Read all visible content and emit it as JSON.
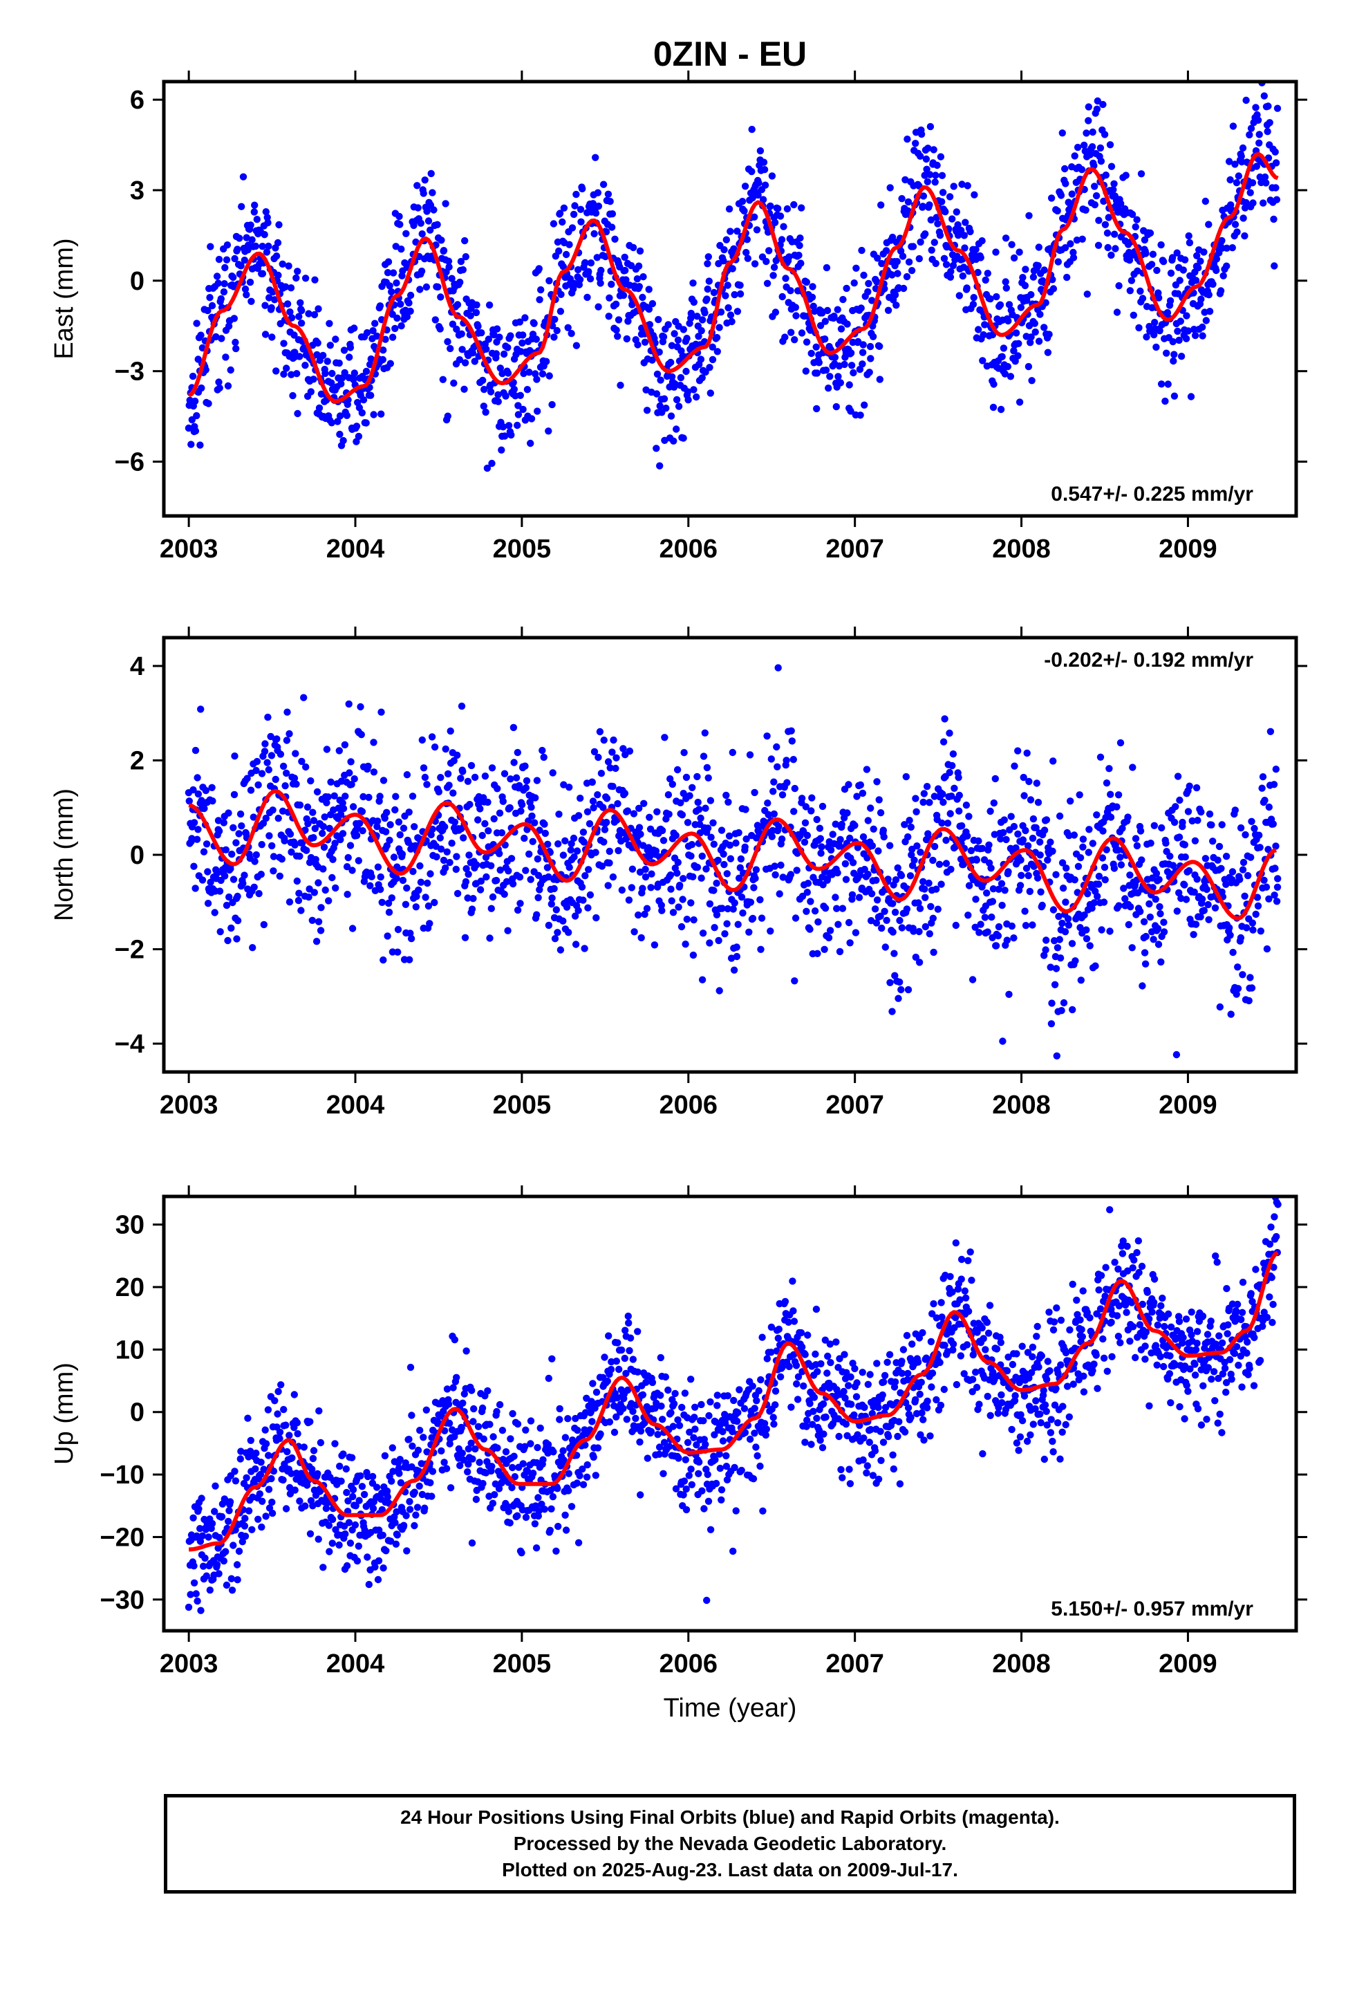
{
  "title": "0ZIN - EU",
  "colors": {
    "final_orbits": "#0000ff",
    "model": "#ff0000",
    "frame": "#000000"
  },
  "chart_data": [
    {
      "type": "scatter",
      "component": "East",
      "ylabel": "East (mm)",
      "xlabel": "",
      "xlim": [
        2002.85,
        2009.65
      ],
      "ylim": [
        -7.8,
        6.6
      ],
      "xticks": [
        "2003",
        "2004",
        "2005",
        "2006",
        "2007",
        "2008",
        "2009"
      ],
      "yticks": [
        "6",
        "3",
        "0",
        "−3",
        "−6"
      ],
      "ytick_values": [
        6,
        3,
        0,
        -3,
        -6
      ],
      "rate_label": "0.547+/- 0.225 mm/yr",
      "rate_position": "bottom-right",
      "fit": {
        "x": [
          2003.0,
          2003.2,
          2003.42,
          2003.63,
          2003.88,
          2004.05,
          2004.25,
          2004.42,
          2004.62,
          2004.88,
          2005.1,
          2005.25,
          2005.43,
          2005.62,
          2005.88,
          2006.1,
          2006.25,
          2006.42,
          2006.6,
          2006.85,
          2007.05,
          2007.25,
          2007.42,
          2007.62,
          2007.88,
          2008.1,
          2008.25,
          2008.42,
          2008.62,
          2008.88,
          2009.05,
          2009.25,
          2009.42,
          2009.54
        ],
        "y": [
          -3.8,
          -1.0,
          0.9,
          -1.5,
          -4.0,
          -3.5,
          -0.5,
          1.4,
          -1.2,
          -3.4,
          -2.4,
          0.3,
          2.0,
          -0.3,
          -3.0,
          -2.2,
          0.6,
          2.6,
          0.4,
          -2.4,
          -1.6,
          1.1,
          3.1,
          1.0,
          -1.8,
          -0.8,
          1.7,
          3.7,
          1.6,
          -1.3,
          -0.2,
          2.1,
          4.2,
          3.4
        ]
      },
      "scatter": {
        "n": 1900,
        "noise": 1.1,
        "seed": 11
      }
    },
    {
      "type": "scatter",
      "component": "North",
      "ylabel": "North (mm)",
      "xlabel": "",
      "xlim": [
        2002.85,
        2009.65
      ],
      "ylim": [
        -4.6,
        4.6
      ],
      "xticks": [
        "2003",
        "2004",
        "2005",
        "2006",
        "2007",
        "2008",
        "2009"
      ],
      "yticks": [
        "4",
        "2",
        "0",
        "−2",
        "−4"
      ],
      "ytick_values": [
        4,
        2,
        0,
        -2,
        -4
      ],
      "rate_label": "-0.202+/- 0.192 mm/yr",
      "rate_position": "top-right",
      "fit": {
        "x": [
          2003.0,
          2003.27,
          2003.52,
          2003.75,
          2004.0,
          2004.27,
          2004.55,
          2004.78,
          2005.02,
          2005.27,
          2005.53,
          2005.78,
          2006.02,
          2006.27,
          2006.53,
          2006.78,
          2007.02,
          2007.27,
          2007.53,
          2007.78,
          2008.02,
          2008.27,
          2008.55,
          2008.8,
          2009.03,
          2009.3,
          2009.53
        ],
        "y": [
          1.05,
          -0.2,
          1.35,
          0.2,
          0.85,
          -0.4,
          1.1,
          0.05,
          0.65,
          -0.55,
          0.95,
          -0.2,
          0.45,
          -0.75,
          0.75,
          -0.3,
          0.25,
          -0.95,
          0.55,
          -0.55,
          0.1,
          -1.2,
          0.35,
          -0.8,
          -0.15,
          -1.35,
          0.1
        ]
      },
      "scatter": {
        "n": 1900,
        "noise": 0.95,
        "seed": 23
      }
    },
    {
      "type": "scatter",
      "component": "Up",
      "ylabel": "Up (mm)",
      "xlabel": "Time (year)",
      "xlim": [
        2002.85,
        2009.65
      ],
      "ylim": [
        -35,
        34.5
      ],
      "xticks": [
        "2003",
        "2004",
        "2005",
        "2006",
        "2007",
        "2008",
        "2009"
      ],
      "yticks": [
        "30",
        "20",
        "10",
        "0",
        "−10",
        "−20",
        "−30"
      ],
      "ytick_values": [
        30,
        20,
        10,
        0,
        -10,
        -20,
        -30
      ],
      "rate_label": "5.150+/- 0.957 mm/yr",
      "rate_position": "bottom-right",
      "fit": {
        "x": [
          2003.0,
          2003.18,
          2003.4,
          2003.6,
          2003.75,
          2003.95,
          2004.15,
          2004.35,
          2004.6,
          2004.78,
          2004.98,
          2005.18,
          2005.38,
          2005.6,
          2005.8,
          2006.0,
          2006.2,
          2006.4,
          2006.6,
          2006.8,
          2007.0,
          2007.2,
          2007.4,
          2007.6,
          2007.8,
          2008.0,
          2008.2,
          2008.4,
          2008.6,
          2008.8,
          2009.0,
          2009.2,
          2009.35,
          2009.54
        ],
        "y": [
          -22,
          -21,
          -12,
          -4.5,
          -11,
          -16.5,
          -16.5,
          -11,
          0.5,
          -6,
          -11.5,
          -11.5,
          -4.5,
          5.5,
          -2,
          -6.5,
          -6,
          -1,
          11,
          3,
          -1.5,
          -0.5,
          6,
          16,
          8,
          3.5,
          4.5,
          11,
          21,
          13,
          9,
          9.5,
          13,
          25.5
        ]
      },
      "scatter": {
        "n": 1900,
        "noise": 4.8,
        "seed": 37
      }
    }
  ],
  "footer": {
    "line1": "24 Hour Positions Using Final Orbits (blue) and Rapid Orbits (magenta).",
    "line2": "Processed by the Nevada Geodetic Laboratory.",
    "line3": "Plotted on 2025-Aug-23. Last data on 2009-Jul-17."
  }
}
